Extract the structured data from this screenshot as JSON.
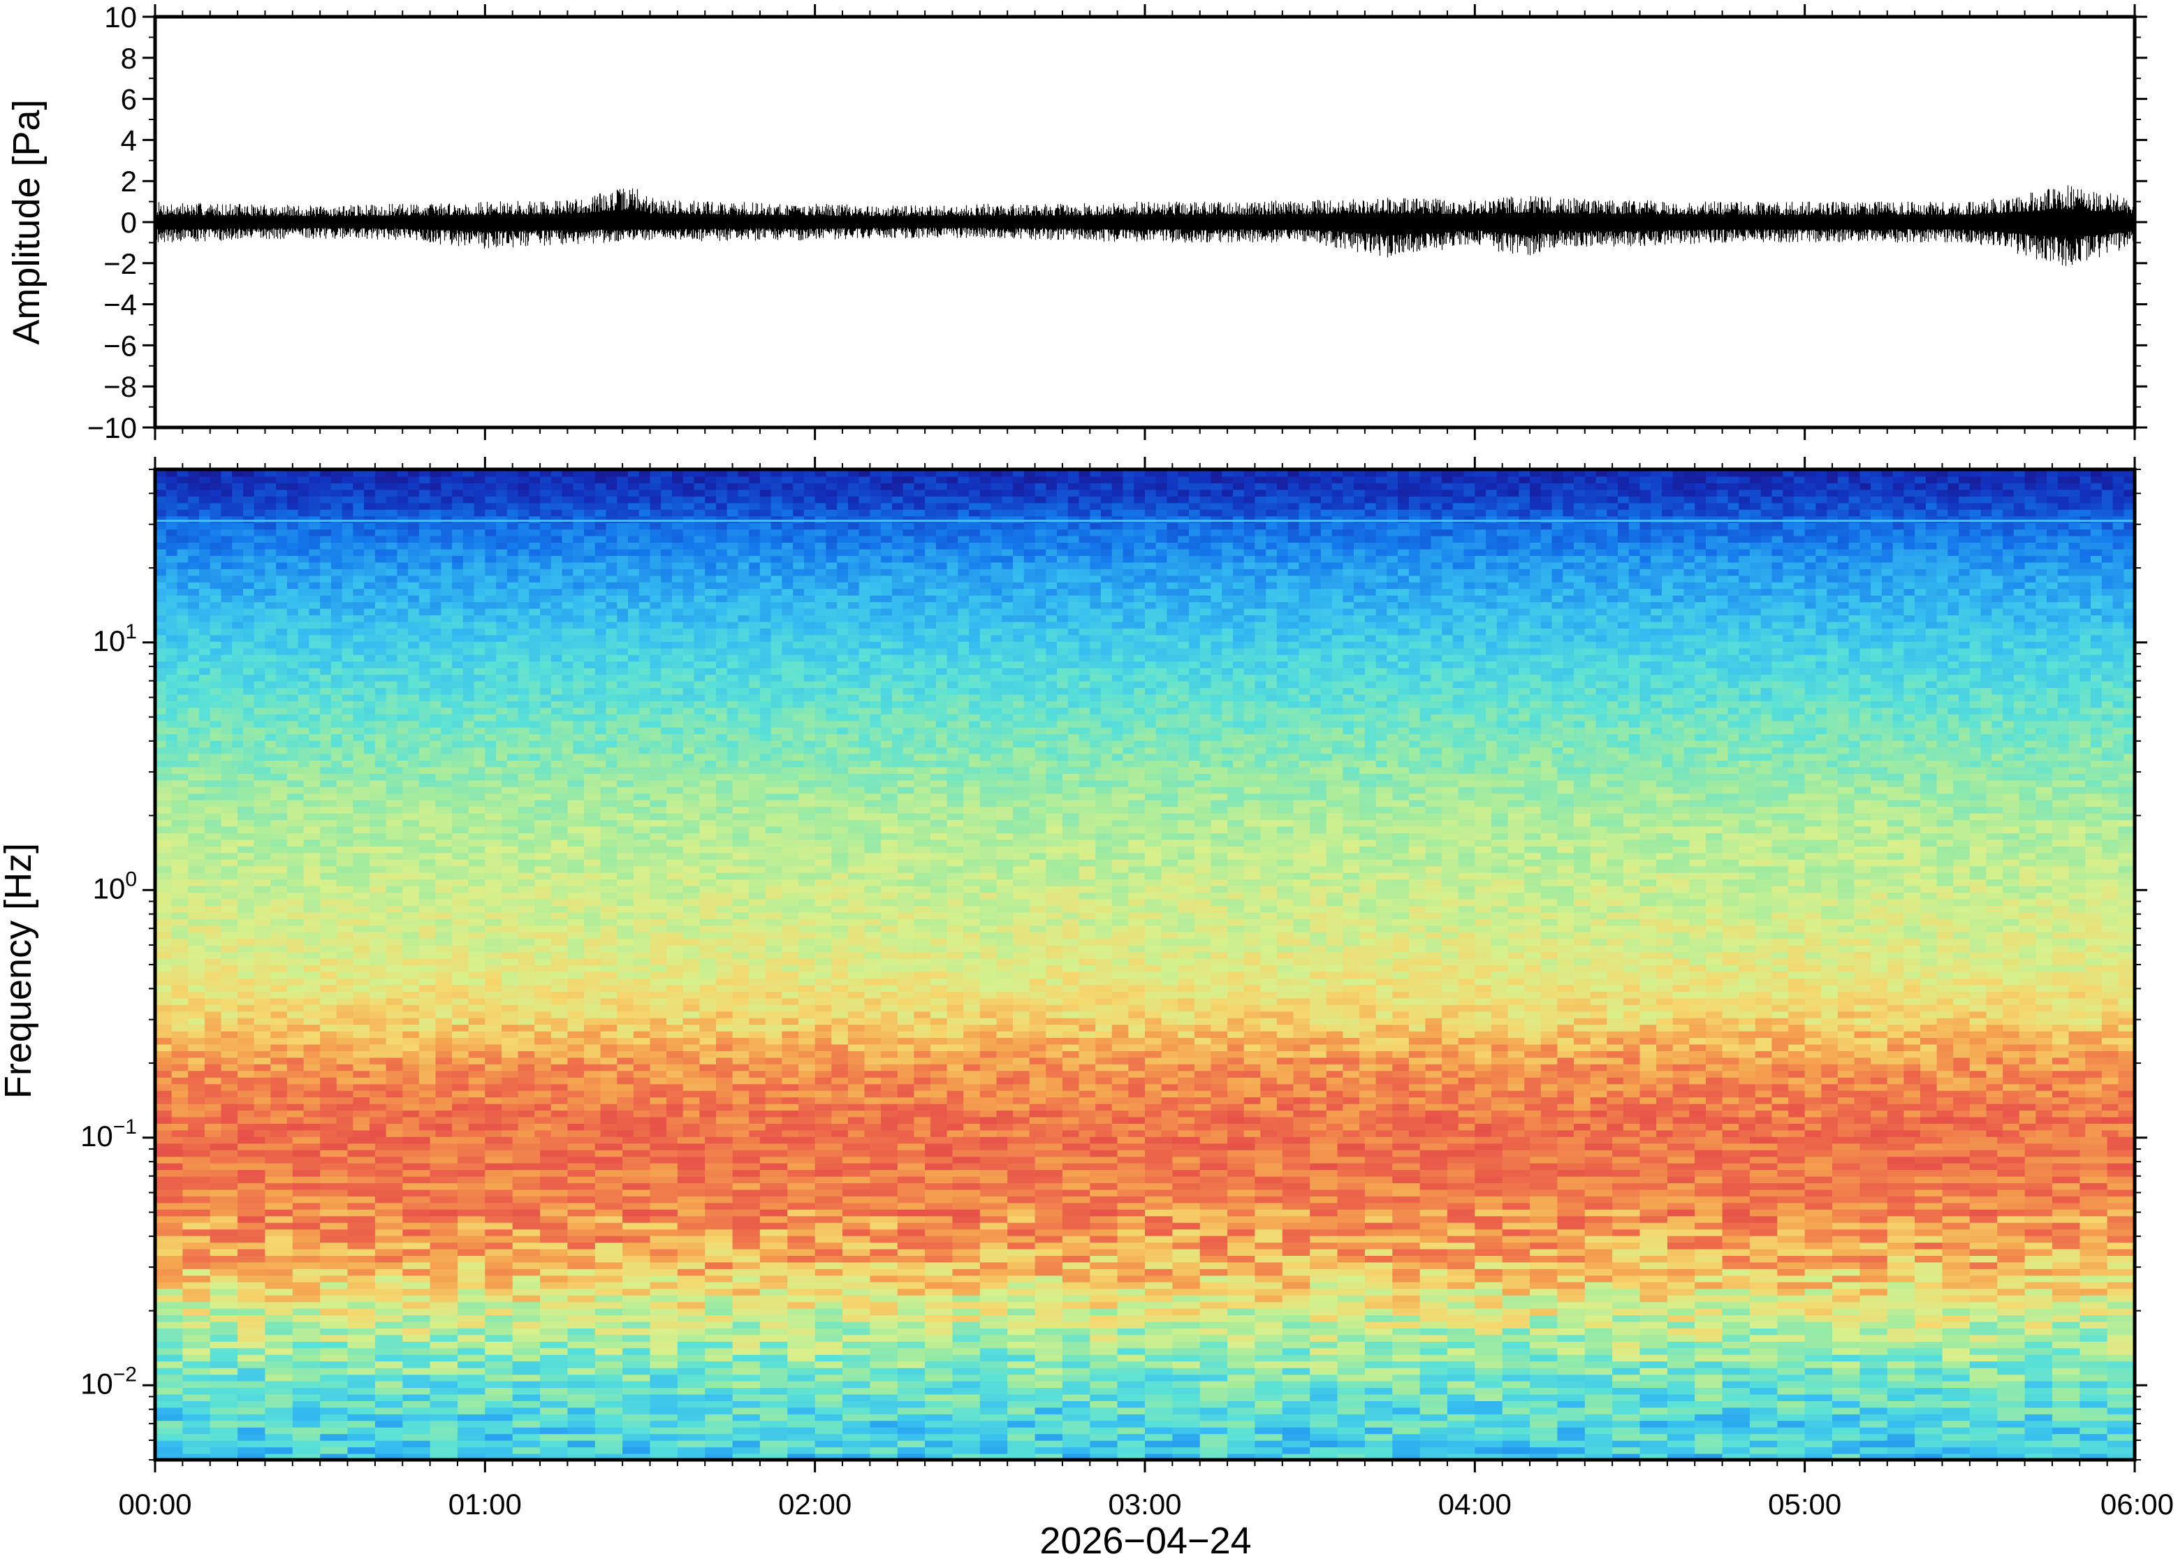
{
  "chart_data": [
    {
      "type": "line",
      "ylabel": "Amplitude [Pa]",
      "ylim": [
        -10,
        10
      ],
      "yticks": [
        -10,
        -8,
        -6,
        -4,
        -2,
        0,
        2,
        4,
        6,
        8,
        10
      ],
      "yticklabels": [
        "−10",
        "−8",
        "−6",
        "−4",
        "−2",
        "0",
        "2",
        "4",
        "6",
        "8",
        "10"
      ],
      "series": [
        {
          "color": "#000000",
          "envelope_hours": [
            0.0,
            0.25,
            0.5,
            0.75,
            1.0,
            1.25,
            1.45,
            1.5,
            1.75,
            2.0,
            2.25,
            2.5,
            2.75,
            3.0,
            3.25,
            3.5,
            3.75,
            4.0,
            4.15,
            4.25,
            4.5,
            4.75,
            5.0,
            5.25,
            5.5,
            5.8,
            6.0
          ],
          "envelope_max_pa": [
            1.0,
            0.9,
            0.8,
            0.9,
            1.0,
            1.1,
            1.8,
            1.2,
            1.0,
            0.9,
            0.8,
            0.9,
            0.9,
            1.0,
            1.0,
            1.1,
            1.2,
            1.1,
            1.3,
            1.2,
            1.1,
            1.0,
            1.0,
            1.0,
            1.0,
            1.8,
            1.2
          ],
          "envelope_min_pa": [
            -1.0,
            -0.9,
            -0.8,
            -0.9,
            -1.3,
            -1.1,
            -1.0,
            -1.0,
            -0.9,
            -0.9,
            -0.8,
            -0.8,
            -0.9,
            -1.0,
            -1.0,
            -1.0,
            -1.8,
            -1.1,
            -1.8,
            -1.2,
            -1.2,
            -1.0,
            -1.0,
            -1.0,
            -1.0,
            -2.2,
            -1.2
          ]
        }
      ],
      "grid": false
    },
    {
      "type": "heatmap",
      "xlabel": "2026−04−24",
      "ylabel": "Frequency [Hz]",
      "x_range_hours": [
        0,
        6
      ],
      "xticks_hours": [
        0,
        1,
        2,
        3,
        4,
        5,
        6
      ],
      "xticklabels": [
        "00:00",
        "01:00",
        "02:00",
        "03:00",
        "04:00",
        "05:00",
        "06:00"
      ],
      "y_scale": "log",
      "ylim_hz": [
        0.005,
        50
      ],
      "yticks_hz": [
        0.01,
        0.1,
        1,
        10
      ],
      "ytick_base": "10",
      "ytick_exponents": [
        "−2",
        "−1",
        "0",
        "1"
      ],
      "colormap": "jet-like (dark blue high frequency → red near 0.1 Hz → cyan at lowest frequency)",
      "relative_power_profile": {
        "frequency_hz": [
          0.005,
          0.008,
          0.012,
          0.02,
          0.03,
          0.05,
          0.08,
          0.12,
          0.2,
          0.3,
          0.5,
          1,
          2,
          5,
          10,
          20,
          30,
          40,
          50
        ],
        "level_0_to_1": [
          0.4,
          0.44,
          0.52,
          0.64,
          0.76,
          0.84,
          0.88,
          0.88,
          0.82,
          0.72,
          0.66,
          0.62,
          0.58,
          0.49,
          0.4,
          0.3,
          0.22,
          0.13,
          0.1
        ]
      },
      "narrowband_line_hz": 31,
      "grid": false
    }
  ]
}
